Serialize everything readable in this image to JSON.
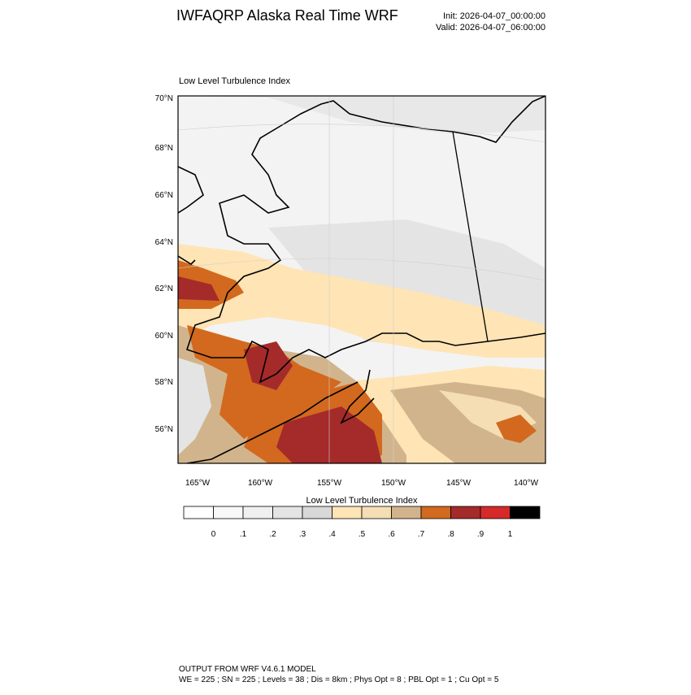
{
  "header": {
    "title": "IWFAQRP Alaska Real Time WRF",
    "init": "Init: 2026-04-07_00:00:00",
    "valid": "Valid: 2026-04-07_06:00:00"
  },
  "map": {
    "title": "Low Level Turbulence Index",
    "lat_labels": [
      "70°N",
      "68°N",
      "66°N",
      "64°N",
      "62°N",
      "60°N",
      "58°N",
      "56°N"
    ],
    "lon_labels": [
      "165°W",
      "160°W",
      "155°W",
      "150°W",
      "145°W",
      "140°W"
    ]
  },
  "colorbar": {
    "title": "Low Level Turbulence Index",
    "colors": [
      "#ffffff",
      "#f8f8f8",
      "#f0f0f0",
      "#e4e4e4",
      "#d8d8d8",
      "#ffe4b5",
      "#f5deb3",
      "#d2b48c",
      "#d2691e",
      "#a52a2a",
      "#d62a2a",
      "#000000"
    ],
    "labels": [
      "0",
      ".1",
      ".2",
      ".3",
      ".4",
      ".5",
      ".6",
      ".7",
      ".8",
      ".9",
      "1"
    ]
  },
  "footer": {
    "line1": "OUTPUT FROM WRF V4.6.1 MODEL",
    "line2": "WE = 225 ; SN = 225 ; Levels = 38 ; Dis = 8km ; Phys Opt = 8 ; PBL Opt = 1 ; Cu Opt = 5"
  }
}
